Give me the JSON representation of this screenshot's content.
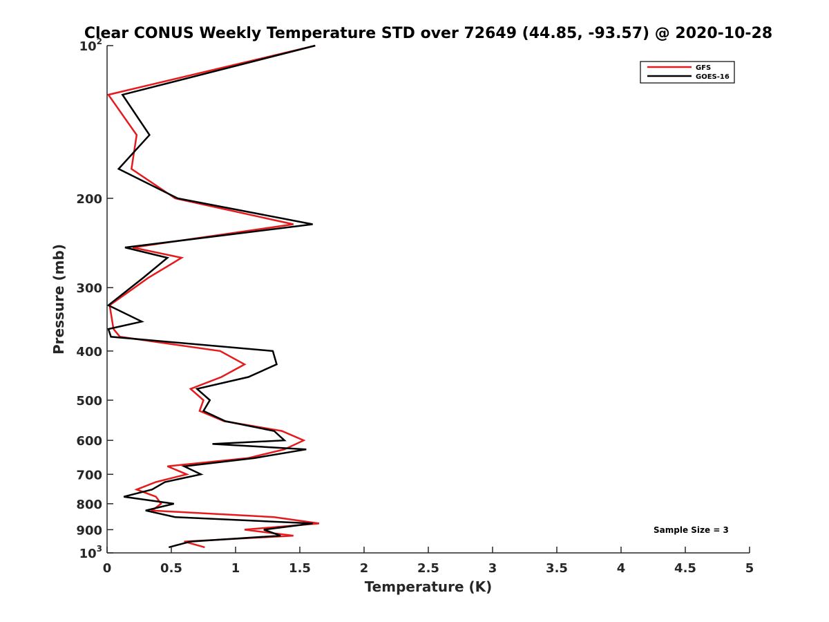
{
  "chart_data": {
    "type": "line",
    "title": "Clear CONUS Weekly Temperature STD over 72649 (44.85, -93.57) @ 2020-10-28",
    "xlabel": "Temperature (K)",
    "ylabel": "Pressure (mb)",
    "xlim": [
      0,
      5
    ],
    "ylim": [
      100,
      1000
    ],
    "y_scale": "log",
    "y_reversed": true,
    "grid": false,
    "legend_position": "top-right",
    "x_ticks": [
      {
        "value": 0,
        "label": "0"
      },
      {
        "value": 0.5,
        "label": "0.5"
      },
      {
        "value": 1,
        "label": "1"
      },
      {
        "value": 1.5,
        "label": "1.5"
      },
      {
        "value": 2,
        "label": "2"
      },
      {
        "value": 2.5,
        "label": "2.5"
      },
      {
        "value": 3,
        "label": "3"
      },
      {
        "value": 3.5,
        "label": "3.5"
      },
      {
        "value": 4,
        "label": "4"
      },
      {
        "value": 4.5,
        "label": "4.5"
      },
      {
        "value": 5,
        "label": "5"
      }
    ],
    "y_ticks": [
      {
        "value": 100,
        "label": "10",
        "sup": "2"
      },
      {
        "value": 200,
        "label": "200"
      },
      {
        "value": 300,
        "label": "300"
      },
      {
        "value": 400,
        "label": "400"
      },
      {
        "value": 500,
        "label": "500"
      },
      {
        "value": 600,
        "label": "600"
      },
      {
        "value": 700,
        "label": "700"
      },
      {
        "value": 800,
        "label": "800"
      },
      {
        "value": 900,
        "label": "900"
      },
      {
        "value": 1000,
        "label": "10",
        "sup": "3"
      }
    ],
    "series": [
      {
        "name": "GFS",
        "color": "#e41a1c",
        "points": [
          [
            1.62,
            100
          ],
          [
            0.01,
            125
          ],
          [
            0.23,
            150
          ],
          [
            0.19,
            175
          ],
          [
            0.53,
            200
          ],
          [
            1.45,
            225
          ],
          [
            0.2,
            250
          ],
          [
            0.58,
            262
          ],
          [
            0.32,
            287
          ],
          [
            0.02,
            325
          ],
          [
            0.05,
            362
          ],
          [
            0.1,
            375
          ],
          [
            0.88,
            400
          ],
          [
            1.07,
            425
          ],
          [
            0.89,
            450
          ],
          [
            0.65,
            475
          ],
          [
            0.75,
            500
          ],
          [
            0.72,
            525
          ],
          [
            0.91,
            550
          ],
          [
            1.36,
            575
          ],
          [
            1.53,
            600
          ],
          [
            1.38,
            625
          ],
          [
            1.1,
            650
          ],
          [
            0.47,
            675
          ],
          [
            0.62,
            700
          ],
          [
            0.38,
            725
          ],
          [
            0.23,
            750
          ],
          [
            0.38,
            775
          ],
          [
            0.42,
            800
          ],
          [
            0.35,
            825
          ],
          [
            1.3,
            850
          ],
          [
            1.65,
            875
          ],
          [
            1.07,
            900
          ],
          [
            1.45,
            925
          ],
          [
            0.6,
            950
          ],
          [
            0.76,
            975
          ]
        ]
      },
      {
        "name": "GOES-16",
        "color": "#000000",
        "points": [
          [
            1.62,
            100
          ],
          [
            0.12,
            125
          ],
          [
            0.33,
            150
          ],
          [
            0.09,
            175
          ],
          [
            0.55,
            200
          ],
          [
            1.6,
            225
          ],
          [
            0.14,
            250
          ],
          [
            0.47,
            262
          ],
          [
            0.28,
            287
          ],
          [
            0.01,
            325
          ],
          [
            0.27,
            350
          ],
          [
            0.01,
            362
          ],
          [
            0.03,
            375
          ],
          [
            1.29,
            400
          ],
          [
            1.32,
            425
          ],
          [
            1.1,
            450
          ],
          [
            0.7,
            475
          ],
          [
            0.8,
            500
          ],
          [
            0.75,
            525
          ],
          [
            0.92,
            550
          ],
          [
            1.3,
            575
          ],
          [
            1.38,
            600
          ],
          [
            0.82,
            610
          ],
          [
            1.55,
            625
          ],
          [
            1.15,
            650
          ],
          [
            0.6,
            675
          ],
          [
            0.73,
            700
          ],
          [
            0.45,
            725
          ],
          [
            0.35,
            750
          ],
          [
            0.13,
            775
          ],
          [
            0.52,
            800
          ],
          [
            0.3,
            825
          ],
          [
            0.53,
            850
          ],
          [
            1.6,
            875
          ],
          [
            1.22,
            900
          ],
          [
            1.35,
            925
          ],
          [
            0.65,
            950
          ],
          [
            0.48,
            975
          ]
        ]
      }
    ],
    "annotations": [
      "Sample Size = 3"
    ]
  }
}
